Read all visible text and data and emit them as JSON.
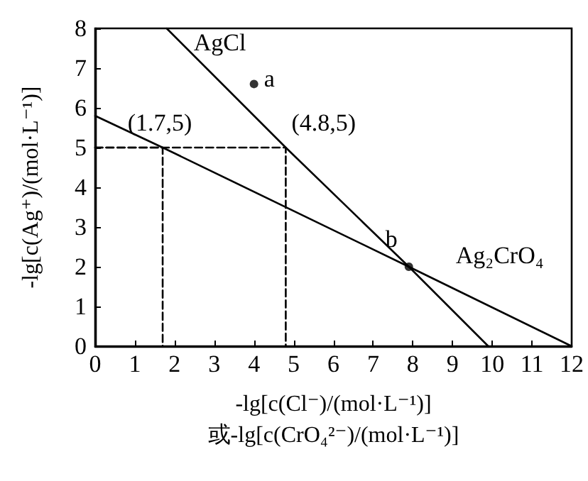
{
  "chart_data": {
    "type": "line",
    "xlabel": "-lg[c(Cl⁻)/(mol·L⁻¹)]\n或-lg[c(CrO₄²⁻)/(mol·L⁻¹)]",
    "ylabel": "-lg[c(Ag⁺)/(mol·L⁻¹)]",
    "xlim": [
      0,
      12
    ],
    "xticks": [
      0,
      1,
      2,
      3,
      4,
      5,
      6,
      7,
      8,
      9,
      10,
      11,
      12
    ],
    "ylim": [
      0,
      8
    ],
    "yticks": [
      0,
      1,
      2,
      3,
      4,
      5,
      6,
      7,
      8
    ],
    "grid": false,
    "legend": false,
    "marker": "none",
    "series": [
      {
        "name": "AgCl",
        "color": "#000000",
        "x": [
          1.8,
          4.8,
          7.9,
          9.9
        ],
        "values": [
          8,
          5,
          2,
          0
        ]
      },
      {
        "name": "Ag₂CrO₄",
        "color": "#000000",
        "x": [
          0,
          1.7,
          7.9,
          12
        ],
        "values": [
          5.8,
          5,
          2,
          0
        ]
      },
      {
        "color": "#000000",
        "line_style": "dashed",
        "x": [
          0,
          1.7,
          1.7
        ],
        "values": [
          5,
          5,
          0
        ]
      },
      {
        "color": "#000000",
        "line_style": "dashed",
        "x": [
          0,
          4.8,
          4.8
        ],
        "values": [
          5,
          5,
          0
        ]
      },
      {
        "type": "scatter",
        "marker": "circle",
        "color": "#000000",
        "x": [
          4,
          7.9
        ],
        "values": [
          6.6,
          2
        ]
      }
    ],
    "annotations": [
      {
        "text": "(1.7,5)",
        "x": 1.7,
        "y": 5
      },
      {
        "text": "(4.8,5)",
        "x": 4.8,
        "y": 5
      },
      {
        "text": "a",
        "x": 4,
        "y": 6.6
      },
      {
        "text": "b",
        "x": 7.9,
        "y": 2
      }
    ]
  }
}
